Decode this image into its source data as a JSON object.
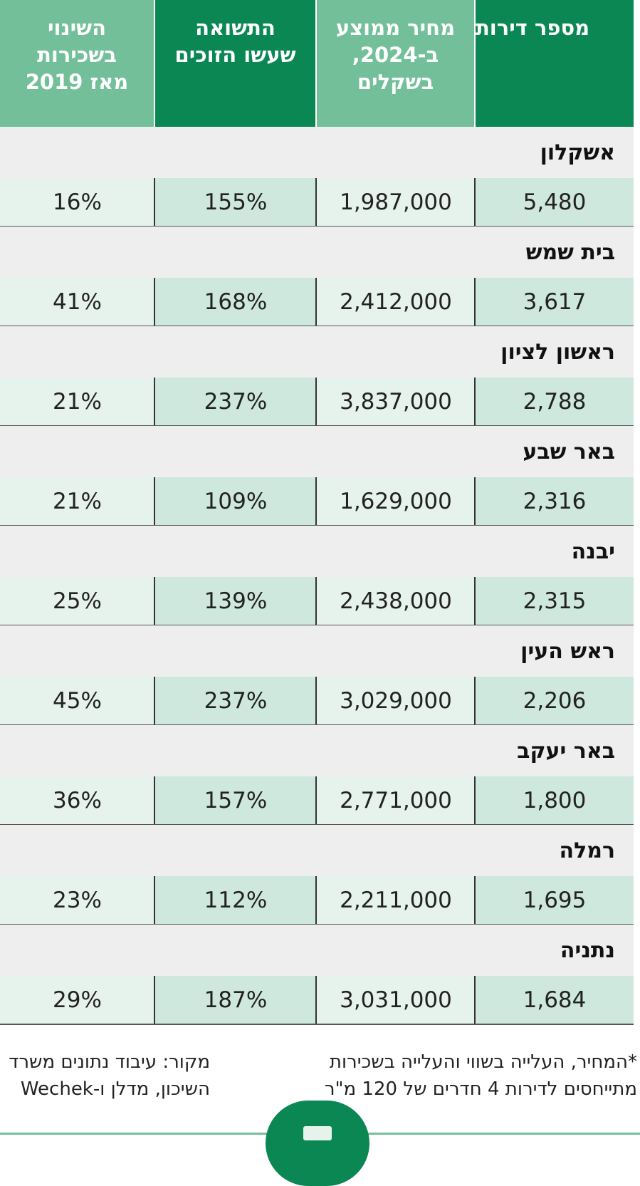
{
  "chart_data": {
    "type": "table",
    "columns": [
      "מספר דירות",
      "מחיר ממוצע\nב-2024,\nבשקלים",
      "התשואה\nשעשו הזוכים",
      "השינוי\nבשכירות\nמאז 2019"
    ],
    "rows": [
      {
        "city": "אשקלון",
        "values": [
          "5,480",
          "1,987,000",
          "155%",
          "16%"
        ]
      },
      {
        "city": "בית שמש",
        "values": [
          "3,617",
          "2,412,000",
          "168%",
          "41%"
        ]
      },
      {
        "city": "ראשון לציון",
        "values": [
          "2,788",
          "3,837,000",
          "237%",
          "21%"
        ]
      },
      {
        "city": "באר שבע",
        "values": [
          "2,316",
          "1,629,000",
          "109%",
          "21%"
        ]
      },
      {
        "city": "יבנה",
        "values": [
          "2,315",
          "2,438,000",
          "139%",
          "25%"
        ]
      },
      {
        "city": "ראש העין",
        "values": [
          "2,206",
          "3,029,000",
          "237%",
          "45%"
        ]
      },
      {
        "city": "באר יעקב",
        "values": [
          "1,800",
          "2,771,000",
          "157%",
          "36%"
        ]
      },
      {
        "city": "רמלה",
        "values": [
          "1,695",
          "2,211,000",
          "112%",
          "23%"
        ]
      },
      {
        "city": "נתניה",
        "values": [
          "1,684",
          "3,031,000",
          "187%",
          "29%"
        ]
      }
    ]
  },
  "notes": {
    "source": "מקור: עיבוד נתונים משרד\nהשיכון, מדלן ו-Wechek",
    "footnote": "*המחיר, העלייה בשווי והעלייה בשכירות\nמתייחסים לדירות 4 חדרים של 120 מ\"ר"
  },
  "colors": {
    "header_dark": "#0b8754",
    "header_light": "#72bf99",
    "cell_dark": "#cfe8dd",
    "cell_light": "#e6f3ed",
    "city_band": "#eeeeee"
  }
}
